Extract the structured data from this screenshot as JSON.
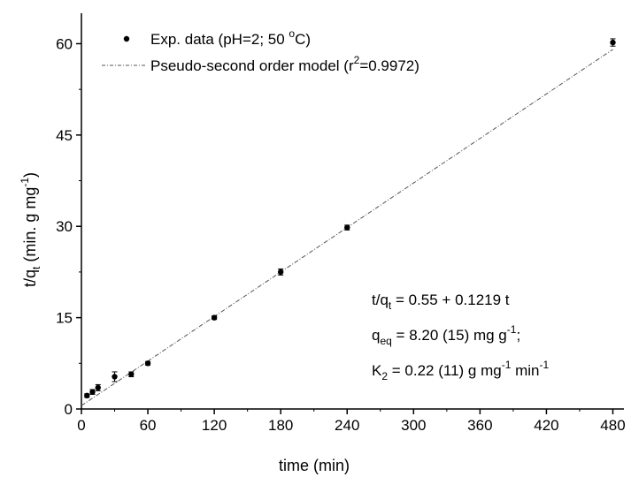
{
  "chart_data": {
    "type": "scatter",
    "xlabel": "time (min)",
    "ylabel": {
      "main": "t/q",
      "sub": "t",
      "unit": " (min. g mg",
      "sup": "-1",
      "close": ")"
    },
    "xlim": [
      0,
      490
    ],
    "ylim": [
      0,
      65
    ],
    "xticks": [
      0,
      60,
      120,
      180,
      240,
      300,
      360,
      420,
      480
    ],
    "yticks": [
      0,
      15,
      30,
      45,
      60
    ],
    "grid": false,
    "legend_position": "top-left",
    "series": [
      {
        "name": "Exp. data (pH=2; 50 °C)",
        "type": "scatter",
        "marker": "circle",
        "x": [
          5,
          10,
          15,
          30,
          45,
          60,
          120,
          180,
          240,
          480
        ],
        "y": [
          2.2,
          2.8,
          3.5,
          5.3,
          5.7,
          7.5,
          15.0,
          22.5,
          29.8,
          60.2
        ],
        "err": [
          0.3,
          0.4,
          0.5,
          0.8,
          0.4,
          0.3,
          0.3,
          0.5,
          0.4,
          0.6
        ]
      },
      {
        "name": "Pseudo-second order model (r²=0.9972)",
        "type": "line",
        "style": "dash-dot",
        "intercept": 0.55,
        "slope": 0.1219,
        "x_range": [
          0,
          480
        ]
      }
    ],
    "legend_labels": {
      "exp": {
        "text": "Exp. data (pH=2; 50 ",
        "sup": "o",
        "tail": "C)"
      },
      "model": {
        "text": "Pseudo-second order model (r",
        "sup": "2",
        "tail": "=0.9972)"
      }
    },
    "annotations": [
      {
        "main": "t/q",
        "sub": "t",
        "rest": " = 0.55 + 0.1219 t"
      },
      {
        "main": "q",
        "sub": "eq",
        "rest": " = 8.20 (15) mg g",
        "sup": "-1",
        "tail": ";"
      },
      {
        "main": "K",
        "sub": "2",
        "rest": " = 0.22 (11) g mg",
        "sup": "-1",
        "mid": " min",
        "sup2": "-1"
      }
    ],
    "colors": {
      "points": "#000000",
      "line": "#555555",
      "axis": "#000000"
    }
  }
}
